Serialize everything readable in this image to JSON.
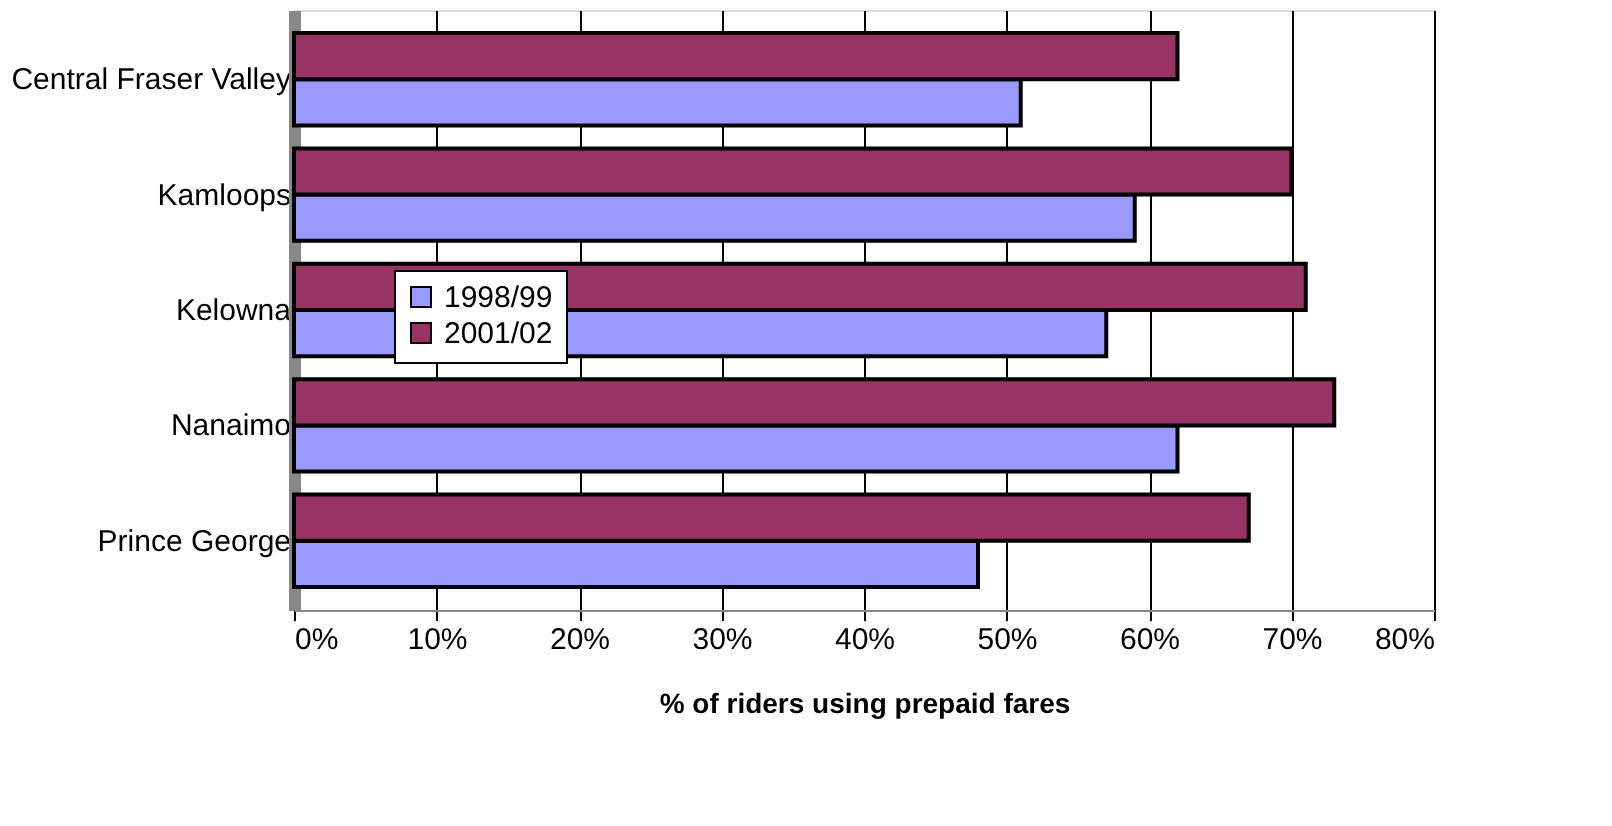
{
  "chart_data": {
    "type": "bar",
    "orientation": "horizontal",
    "categories": [
      "Central Fraser Valley",
      "Kamloops",
      "Kelowna",
      "Nanaimo",
      "Prince George"
    ],
    "series": [
      {
        "name": "1998/99",
        "color": "#9999ff",
        "values": [
          51,
          59,
          57,
          62,
          48
        ]
      },
      {
        "name": "2001/02",
        "color": "#993366",
        "values": [
          62,
          70,
          71,
          73,
          67
        ]
      }
    ],
    "xlabel": "% of riders using prepaid fares",
    "xlim": [
      0,
      80
    ],
    "xticks": [
      {
        "value": 0,
        "label": "0%"
      },
      {
        "value": 10,
        "label": "10%"
      },
      {
        "value": 20,
        "label": "20%"
      },
      {
        "value": 30,
        "label": "30%"
      },
      {
        "value": 40,
        "label": "40%"
      },
      {
        "value": 50,
        "label": "50%"
      },
      {
        "value": 60,
        "label": "60%"
      },
      {
        "value": 70,
        "label": "70%"
      },
      {
        "value": 80,
        "label": "80%"
      }
    ],
    "grid": "x",
    "legend": "left"
  }
}
